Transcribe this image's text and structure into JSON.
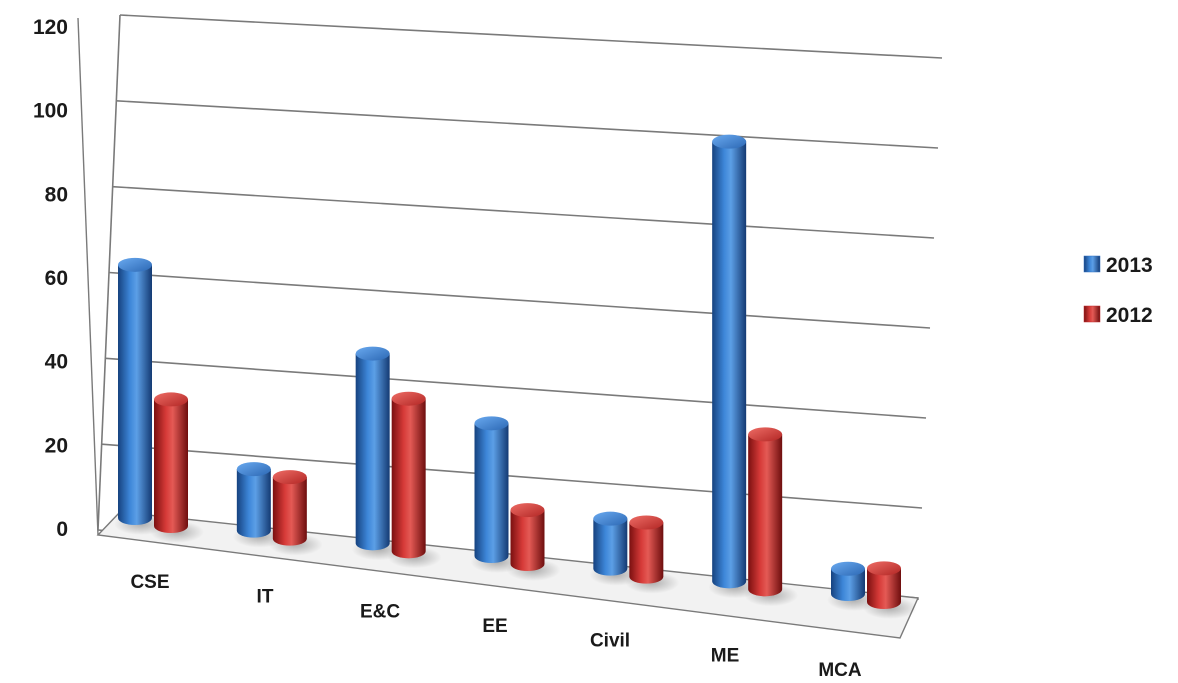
{
  "chart_data": {
    "type": "bar",
    "title": "",
    "xlabel": "",
    "ylabel": "",
    "categories": [
      "CSE",
      "IT",
      "E&C",
      "EE",
      "Civil",
      "ME",
      "MCA"
    ],
    "series": [
      {
        "name": "2013",
        "values": [
          62,
          15,
          46,
          32,
          12,
          105,
          6
        ],
        "color": "#2e6fc0"
      },
      {
        "name": "2012",
        "values": [
          31,
          15,
          37,
          13,
          13,
          37,
          8
        ],
        "color": "#c0282a"
      }
    ],
    "ylim": [
      0,
      120
    ],
    "yticks": [
      0,
      20,
      40,
      60,
      80,
      100,
      120
    ],
    "grid": true,
    "legend_position": "right",
    "style": "3d-cylinder"
  }
}
